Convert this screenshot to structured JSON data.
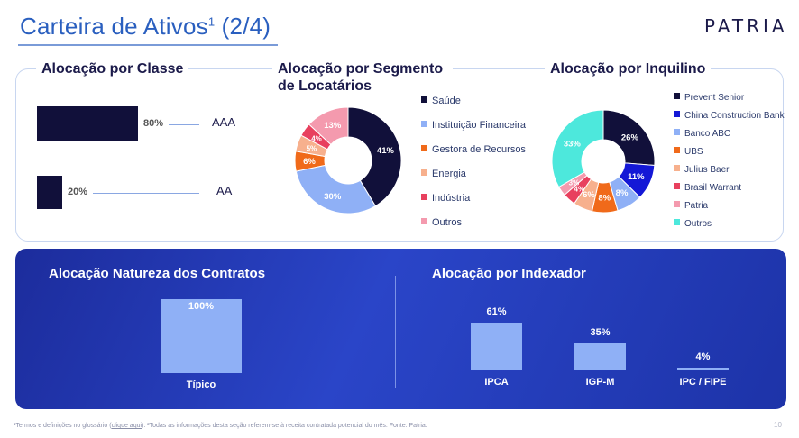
{
  "header": {
    "title": "Carteira de Ativos",
    "title_sup": "1",
    "title_suffix": " (2/4)",
    "logo": "PATRIA"
  },
  "footer": {
    "note_pre": "¹Termos e definições no glossário (",
    "note_link": "clique aqui",
    "note_post": "). ²Todas as informações desta seção referem-se à receita contratada potencial do mês. Fonte: Patria.",
    "page_number": "10"
  },
  "colors": {
    "navy": "#11103a",
    "blue_title": "#2a5fbf",
    "panel_blue": "#2a45c8",
    "bar_light": "#8fb0f6"
  },
  "chart_data": [
    {
      "type": "bar",
      "orientation": "horizontal",
      "title": "Alocação por Classe",
      "categories": [
        "AAA",
        "AA"
      ],
      "values": [
        80,
        20
      ],
      "value_labels": [
        "80%",
        "20%"
      ],
      "xlim": [
        0,
        100
      ]
    },
    {
      "type": "pie",
      "donut": true,
      "title": "Alocação por Segmento de Locatários",
      "slices": [
        {
          "label": "Saúde",
          "value": 41,
          "value_label": "41%",
          "color": "#11103a",
          "text_color": "#ffffff"
        },
        {
          "label": "Instituição Financeira",
          "value": 30,
          "value_label": "30%",
          "color": "#8fb0f6",
          "text_color": "#ffffff"
        },
        {
          "label": "Gestora de Recursos",
          "value": 6,
          "value_label": "6%",
          "color": "#f06a1a",
          "text_color": "#ffffff"
        },
        {
          "label": "Energia",
          "value": 5,
          "value_label": "5%",
          "color": "#f7b08d",
          "text_color": "#ffffff"
        },
        {
          "label": "Indústria",
          "value": 4,
          "value_label": "4%",
          "color": "#e8405e",
          "text_color": "#ffffff"
        },
        {
          "label": "Outros",
          "value": 13,
          "value_label": "13%",
          "color": "#f49aae",
          "text_color": "#ffffff"
        }
      ]
    },
    {
      "type": "pie",
      "donut": true,
      "title": "Alocação por Inquilino",
      "slices": [
        {
          "label": "Prevent Senior",
          "value": 26,
          "value_label": "26%",
          "color": "#11103a",
          "text_color": "#ffffff"
        },
        {
          "label": "China Construction Bank",
          "value": 11,
          "value_label": "11%",
          "color": "#1418d6",
          "text_color": "#ffffff"
        },
        {
          "label": "Banco ABC",
          "value": 8,
          "value_label": "8%",
          "color": "#8fb0f6",
          "text_color": "#ffffff"
        },
        {
          "label": "UBS",
          "value": 8,
          "value_label": "8%",
          "color": "#f06a1a",
          "text_color": "#ffffff"
        },
        {
          "label": "Julius Baer",
          "value": 6,
          "value_label": "6%",
          "color": "#f7b08d",
          "text_color": "#ffffff"
        },
        {
          "label": "Brasil Warrant",
          "value": 4,
          "value_label": "4%",
          "color": "#e8405e",
          "text_color": "#ffffff"
        },
        {
          "label": "Patria",
          "value": 3,
          "value_label": "3%",
          "color": "#f49aae",
          "text_color": "#ffffff"
        },
        {
          "label": "Outros",
          "value": 33,
          "value_label": "33%",
          "color": "#4de8dc",
          "text_color": "#ffffff"
        }
      ]
    },
    {
      "type": "bar",
      "title": "Alocação Natureza dos Contratos",
      "categories": [
        "Típico"
      ],
      "values": [
        100
      ],
      "value_labels": [
        "100%"
      ],
      "ylim": [
        0,
        100
      ]
    },
    {
      "type": "bar",
      "title": "Alocação por Indexador",
      "categories": [
        "IPCA",
        "IGP-M",
        "IPC / FIPE"
      ],
      "values": [
        61,
        35,
        4
      ],
      "value_labels": [
        "61%",
        "35%",
        "4%"
      ],
      "ylim": [
        0,
        61
      ]
    }
  ]
}
